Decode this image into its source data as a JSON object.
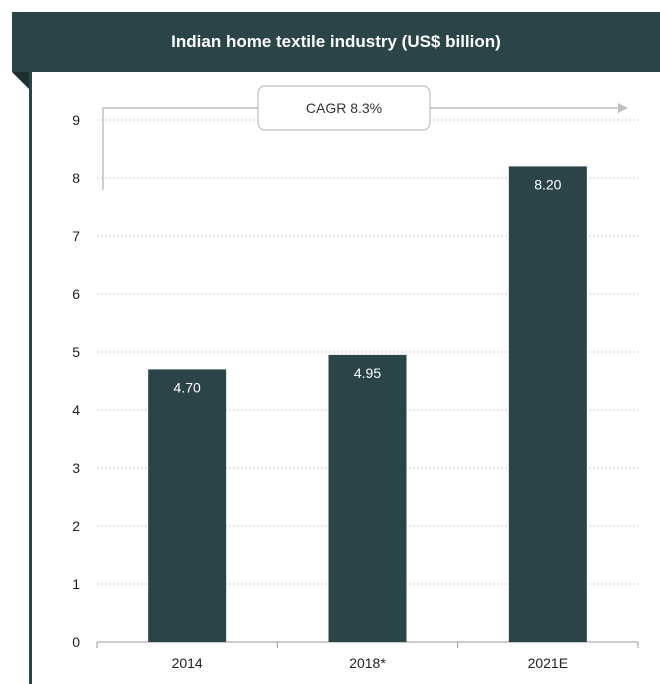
{
  "header": {
    "title": "Indian home textile industry (US$ billion)"
  },
  "colors": {
    "header": "#2b4448",
    "bar": "#2b4448",
    "grid": "#cccccc",
    "arrow": "#bfbfbf"
  },
  "annotation": {
    "cagr_label": "CAGR 8.3%"
  },
  "chart_data": {
    "type": "bar",
    "title": "Indian home textile industry (US$ billion)",
    "categories": [
      "2014",
      "2018*",
      "2021E"
    ],
    "values": [
      4.7,
      4.95,
      8.2
    ],
    "value_labels": [
      "4.70",
      "4.95",
      "8.20"
    ],
    "ylim": [
      0,
      9
    ],
    "yticks": [
      0,
      1,
      2,
      3,
      4,
      5,
      6,
      7,
      8,
      9
    ],
    "grid": true,
    "annotations": [
      "CAGR 8.3%"
    ]
  }
}
